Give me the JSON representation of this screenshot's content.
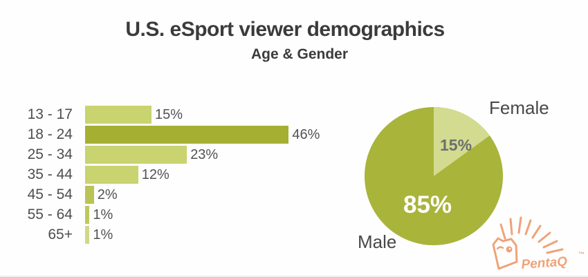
{
  "title": "U.S. eSport viewer demographics",
  "subtitle": "Age & Gender",
  "chart_data": [
    {
      "type": "bar",
      "orientation": "horizontal",
      "categories": [
        "13 - 17",
        "18 - 24",
        "25 - 34",
        "35 - 44",
        "45 - 54",
        "55 - 64",
        "65+"
      ],
      "values": [
        15,
        46,
        23,
        12,
        2,
        1,
        1
      ],
      "value_labels": [
        "15%",
        "46%",
        "23%",
        "12%",
        "2%",
        "1%",
        "1%"
      ],
      "xlim": [
        0,
        50
      ],
      "grid": false,
      "bar_colors": [
        "#c9d36f",
        "#a5b033",
        "#c9d36f",
        "#c9d36f",
        "#bac354",
        "#bfc85e",
        "#d0d888"
      ],
      "highlight_index": 1,
      "highlight_color": "#a5b033"
    },
    {
      "type": "pie",
      "categories": [
        "Male",
        "Female"
      ],
      "values": [
        85,
        15
      ],
      "value_labels": [
        "85%",
        "15%"
      ],
      "colors": [
        "#a9b43b",
        "#d2db90"
      ],
      "start_angle_deg": 0,
      "legend_position": "labels-outside"
    }
  ],
  "watermark": {
    "text": "PentaQ",
    "tm": "™",
    "color": "#f0a278"
  }
}
